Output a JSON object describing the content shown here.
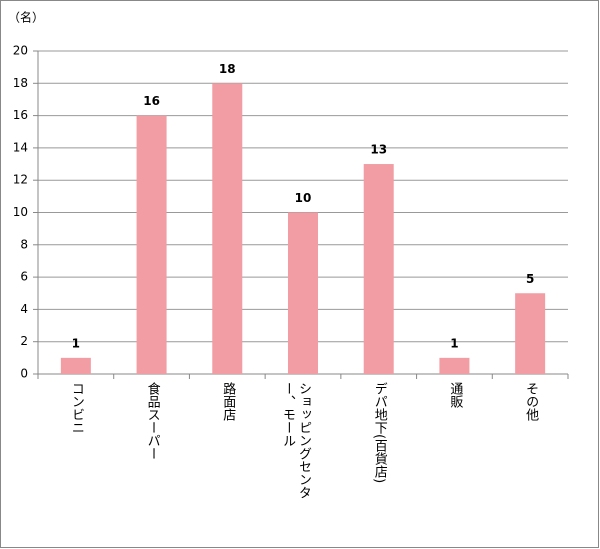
{
  "chart_data": {
    "type": "bar",
    "y_label": "（名）",
    "categories": [
      "コンビニ",
      "食品スーパー",
      "路面店",
      "ショッピングセンター、モール",
      "デパ地下(百貨店)",
      "通販",
      "その他"
    ],
    "values": [
      1,
      16,
      18,
      10,
      13,
      1,
      5
    ],
    "color": "#f29ca3",
    "ylim": [
      0,
      20
    ],
    "yticks": [
      0,
      2,
      4,
      6,
      8,
      10,
      12,
      14,
      16,
      18,
      20
    ],
    "grid": true
  }
}
